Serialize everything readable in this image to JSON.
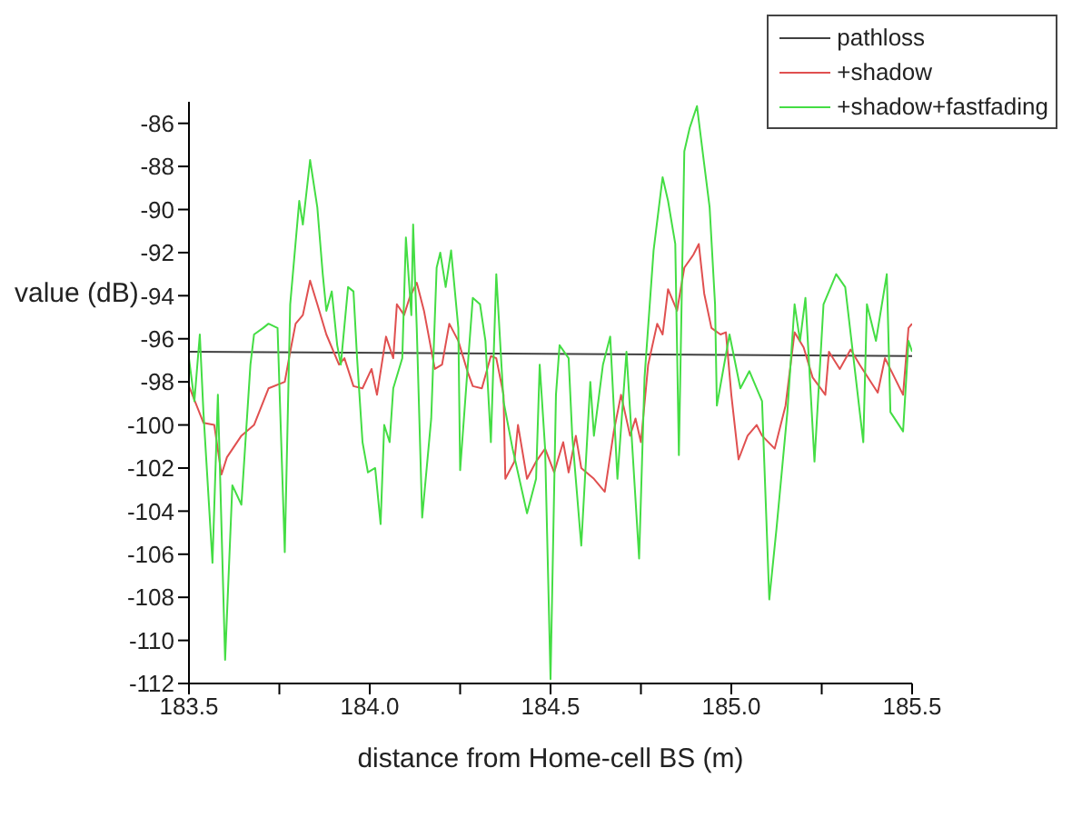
{
  "chart_data": {
    "type": "line",
    "xlabel": "distance from Home-cell BS (m)",
    "ylabel": "value (dB)",
    "xlim": [
      183.5,
      185.5
    ],
    "ylim": [
      -112,
      -85
    ],
    "xticks": [
      {
        "value": 183.5,
        "label": "183.5"
      },
      {
        "value": 183.75,
        "label": null
      },
      {
        "value": 184,
        "label": "184.0"
      },
      {
        "value": 184.25,
        "label": null
      },
      {
        "value": 184.5,
        "label": "184.5"
      },
      {
        "value": 184.75,
        "label": null
      },
      {
        "value": 185,
        "label": "185.0"
      },
      {
        "value": 185.25,
        "label": null
      },
      {
        "value": 185.5,
        "label": "185.5"
      }
    ],
    "yticks": [
      -112,
      -110,
      -108,
      -106,
      -104,
      -102,
      -100,
      -98,
      -96,
      -94,
      -92,
      -90,
      -88,
      -86
    ],
    "grid": false,
    "legend": "top right",
    "marker": "none",
    "line_style": "solid",
    "series": [
      {
        "name": "pathloss",
        "color": "#404040",
        "x": [
          183.5,
          185.5
        ],
        "values": [
          -96.6,
          -96.8
        ]
      },
      {
        "name": "+shadow",
        "color": "#e05050",
        "x": [
          183.5,
          183.54,
          183.57,
          183.59,
          183.605,
          183.645,
          183.68,
          183.72,
          183.765,
          183.78,
          183.795,
          183.815,
          183.835,
          183.855,
          183.88,
          183.915,
          183.93,
          183.955,
          183.98,
          184.005,
          184.02,
          184.045,
          184.065,
          184.075,
          184.095,
          184.11,
          184.13,
          184.15,
          184.18,
          184.2,
          184.22,
          184.245,
          184.27,
          184.285,
          184.31,
          184.335,
          184.35,
          184.37,
          184.375,
          184.4,
          184.41,
          184.435,
          184.46,
          184.485,
          184.51,
          184.535,
          184.55,
          184.57,
          184.585,
          184.62,
          184.65,
          184.675,
          184.695,
          184.72,
          184.735,
          184.75,
          184.77,
          184.795,
          184.81,
          184.825,
          184.85,
          184.87,
          184.895,
          184.91,
          184.925,
          184.945,
          184.97,
          184.985,
          185.0,
          185.02,
          185.045,
          185.07,
          185.085,
          185.12,
          185.15,
          185.175,
          185.2,
          185.225,
          185.26,
          185.27,
          185.3,
          185.33,
          185.355,
          185.405,
          185.425,
          185.475,
          185.49,
          185.5
        ],
        "values": [
          -98.2,
          -99.9,
          -100,
          -102.3,
          -101.5,
          -100.5,
          -100,
          -98.3,
          -98,
          -96.6,
          -95.3,
          -94.9,
          -93.3,
          -94.4,
          -95.8,
          -97.2,
          -96.9,
          -98.2,
          -98.3,
          -97.4,
          -98.6,
          -95.9,
          -96.9,
          -94.4,
          -94.9,
          -94.1,
          -93.4,
          -94.7,
          -97.4,
          -97.2,
          -95.3,
          -96.1,
          -97.5,
          -98.2,
          -98.3,
          -96.8,
          -96.9,
          -98.6,
          -102.5,
          -101.7,
          -100,
          -102.5,
          -101.7,
          -101.1,
          -102.2,
          -100.8,
          -102.2,
          -100.5,
          -102,
          -102.5,
          -103.1,
          -100.3,
          -98.6,
          -100.5,
          -99.7,
          -100.8,
          -97.2,
          -95.3,
          -95.8,
          -93.7,
          -94.7,
          -92.7,
          -92.1,
          -91.6,
          -93.9,
          -95.5,
          -95.8,
          -95.7,
          -98.6,
          -101.6,
          -100.5,
          -100,
          -100.5,
          -101.1,
          -99.1,
          -95.7,
          -96.4,
          -97.8,
          -98.6,
          -96.6,
          -97.4,
          -96.5,
          -97.2,
          -98.5,
          -96.9,
          -98.6,
          -95.5,
          -95.3
        ]
      },
      {
        "name": "+shadow+fastfading",
        "color": "#44dd44",
        "x": [
          183.5,
          183.515,
          183.53,
          183.54,
          183.565,
          183.58,
          183.6,
          183.62,
          183.645,
          183.67,
          183.68,
          183.705,
          183.72,
          183.745,
          183.765,
          183.78,
          183.805,
          183.815,
          183.835,
          183.855,
          183.87,
          183.88,
          183.895,
          183.91,
          183.92,
          183.94,
          183.955,
          183.965,
          183.98,
          183.995,
          184.015,
          184.03,
          184.04,
          184.055,
          184.065,
          184.09,
          184.1,
          184.115,
          184.12,
          184.13,
          184.145,
          184.17,
          184.185,
          184.195,
          184.21,
          184.225,
          184.245,
          184.25,
          184.27,
          184.285,
          184.305,
          184.32,
          184.335,
          184.35,
          184.37,
          184.395,
          184.435,
          184.46,
          184.47,
          184.485,
          184.5,
          184.515,
          184.525,
          184.55,
          184.56,
          184.585,
          184.61,
          184.62,
          184.645,
          184.665,
          184.685,
          184.71,
          184.745,
          184.76,
          184.785,
          184.81,
          184.825,
          184.845,
          184.855,
          184.87,
          184.885,
          184.905,
          184.925,
          184.94,
          184.955,
          184.96,
          184.995,
          185.025,
          185.05,
          185.085,
          185.105,
          185.125,
          185.155,
          185.175,
          185.19,
          185.205,
          185.23,
          185.255,
          185.29,
          185.315,
          185.365,
          185.375,
          185.4,
          185.43,
          185.44,
          185.475,
          185.49,
          185.5
        ],
        "values": [
          -96.9,
          -98.9,
          -95.8,
          -99.4,
          -106.4,
          -98.6,
          -110.9,
          -102.8,
          -103.7,
          -97.2,
          -95.8,
          -95.5,
          -95.3,
          -95.5,
          -105.9,
          -94.4,
          -89.6,
          -90.7,
          -87.7,
          -89.9,
          -93,
          -94.7,
          -93.8,
          -96.3,
          -97.2,
          -93.6,
          -93.8,
          -96.9,
          -100.8,
          -102.2,
          -102,
          -104.6,
          -100,
          -100.8,
          -98.3,
          -96.9,
          -91.3,
          -94.9,
          -90.7,
          -95.5,
          -104.3,
          -99.7,
          -92.7,
          -92,
          -93.6,
          -91.9,
          -95.5,
          -102.1,
          -97.5,
          -94.1,
          -94.4,
          -96.1,
          -100.8,
          -93,
          -98.9,
          -101.1,
          -104.1,
          -102.5,
          -97.2,
          -101.1,
          -111.8,
          -98.6,
          -96.3,
          -96.9,
          -100.5,
          -105.6,
          -98,
          -100.5,
          -97.2,
          -95.9,
          -102.5,
          -96.6,
          -106.2,
          -97.8,
          -91.9,
          -88.5,
          -89.6,
          -91.6,
          -101.4,
          -87.3,
          -86.2,
          -85.2,
          -87.9,
          -89.9,
          -94.4,
          -99.1,
          -95.8,
          -98.3,
          -97.5,
          -98.9,
          -108.1,
          -104.8,
          -99.4,
          -94.4,
          -96.1,
          -94.1,
          -101.7,
          -94.4,
          -93,
          -93.6,
          -100.8,
          -94.4,
          -96.1,
          -93,
          -99.4,
          -100.3,
          -96.1,
          -96.6
        ]
      }
    ]
  }
}
